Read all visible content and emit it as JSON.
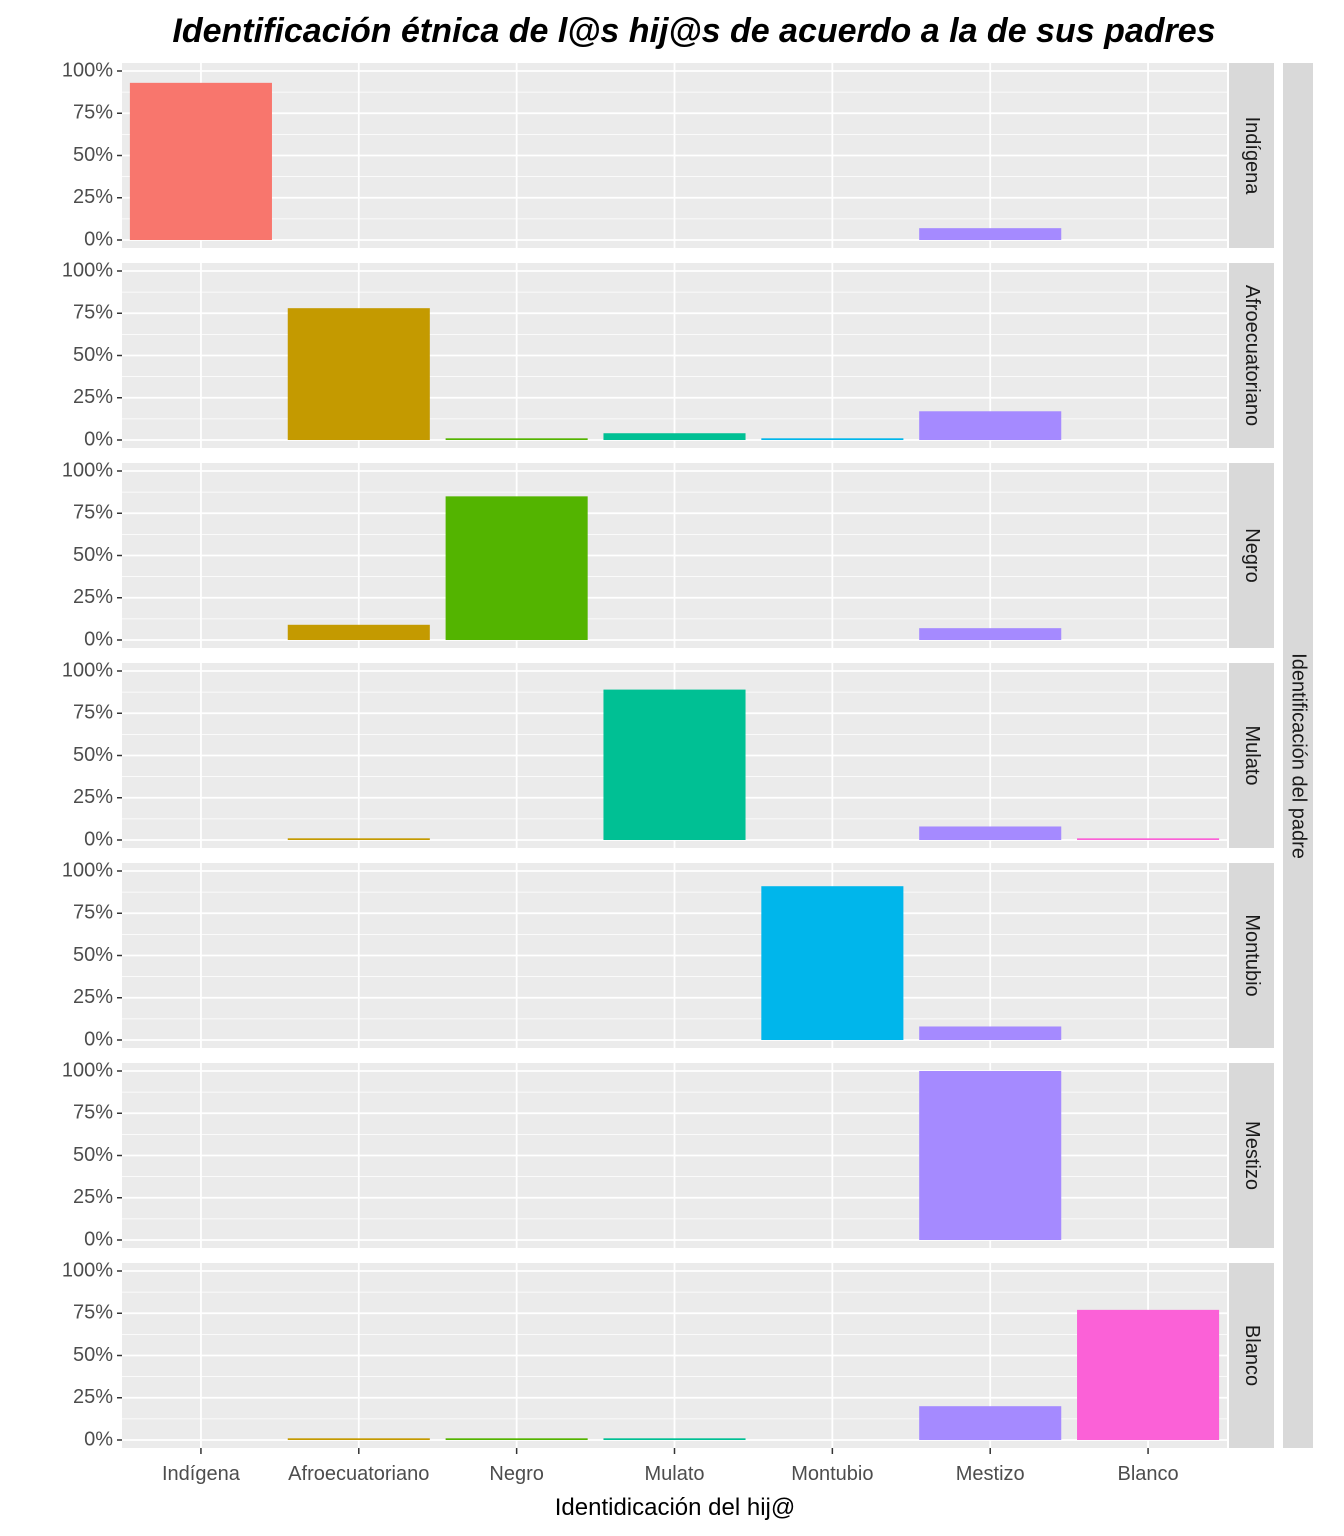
{
  "chart_data": {
    "type": "bar",
    "title": "Identificación étnica de l@s hij@s de acuerdo a la de sus padres",
    "xlabel": "Identidicación del hij@",
    "facet_label": "Identificación del padre",
    "categories": [
      "Indígena",
      "Afroecuatoriano",
      "Negro",
      "Mulato",
      "Montubio",
      "Mestizo",
      "Blanco"
    ],
    "ylim": [
      0,
      1
    ],
    "y_ticks": [
      "0%",
      "25%",
      "50%",
      "75%",
      "100%"
    ],
    "y_tick_values": [
      0,
      0.25,
      0.5,
      0.75,
      1.0
    ],
    "grid": true,
    "legend": "none",
    "colors": [
      "#F8766D",
      "#C49A00",
      "#53B400",
      "#00C094",
      "#00B6EB",
      "#A58AFF",
      "#FB61D7"
    ],
    "panel_background": "#EBEBEB",
    "strip_background": "#D9D9D9",
    "facets": [
      {
        "name": "Indígena",
        "values": [
          0.93,
          0,
          0,
          0,
          0,
          0.07,
          0
        ]
      },
      {
        "name": "Afroecuatoriano",
        "values": [
          0,
          0.78,
          0.01,
          0.04,
          0.01,
          0.17,
          0
        ]
      },
      {
        "name": "Negro",
        "values": [
          0,
          0.09,
          0.85,
          0,
          0,
          0.07,
          0
        ]
      },
      {
        "name": "Mulato",
        "values": [
          0,
          0.01,
          0,
          0.89,
          0,
          0.08,
          0.01
        ]
      },
      {
        "name": "Montubio",
        "values": [
          0,
          0,
          0,
          0,
          0.91,
          0.08,
          0
        ]
      },
      {
        "name": "Mestizo",
        "values": [
          0,
          0,
          0,
          0,
          0,
          1.0,
          0
        ]
      },
      {
        "name": "Blanco",
        "values": [
          0,
          0.01,
          0.01,
          0.01,
          0,
          0.2,
          0.77
        ]
      }
    ]
  }
}
